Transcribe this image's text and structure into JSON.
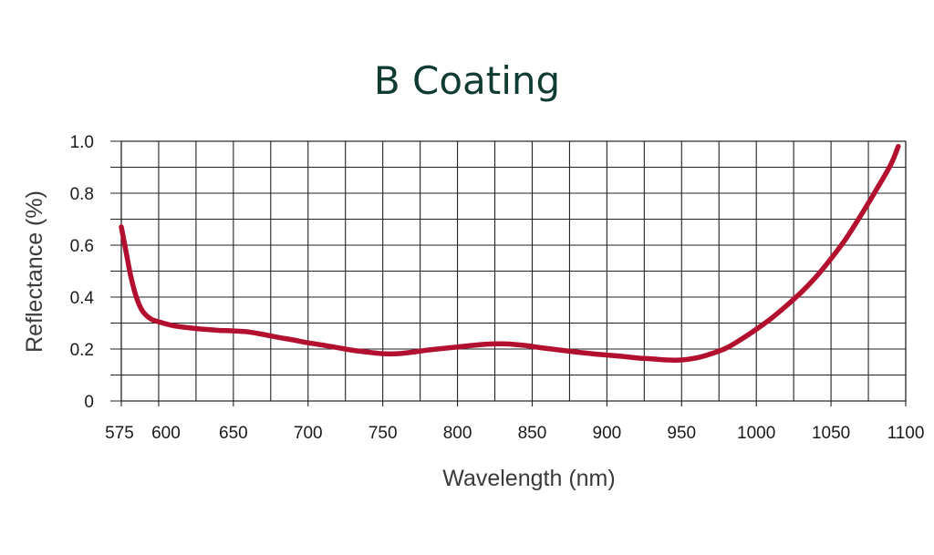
{
  "chart_data": {
    "type": "line",
    "title": "B Coating",
    "xlabel": "Wavelength (nm)",
    "ylabel": "Reflectance (%)",
    "xlim": [
      575,
      1100
    ],
    "ylim": [
      0,
      1.0
    ],
    "x_ticks": [
      575,
      600,
      650,
      700,
      750,
      800,
      850,
      900,
      950,
      1000,
      1050,
      1100
    ],
    "x_tick_labels": [
      "575",
      "600",
      "650",
      "700",
      "750",
      "800",
      "850",
      "900",
      "950",
      "1000",
      "1050",
      "1100"
    ],
    "y_ticks": [
      0,
      0.2,
      0.4,
      0.6,
      0.8,
      1.0
    ],
    "y_tick_labels": [
      "0",
      "0.2",
      "0.4",
      "0.6",
      "0.8",
      "1.0"
    ],
    "y_minor_gridlines": [
      0.1,
      0.3,
      0.5,
      0.7,
      0.9
    ],
    "x_minor_gridlines": [
      625,
      675,
      725,
      775,
      825,
      875,
      925,
      975,
      1025,
      1075
    ],
    "grid": true,
    "line_color": "#b3102f",
    "series": [
      {
        "x": [
          575,
          578,
          581,
          584,
          587,
          590,
          595,
          600,
          610,
          620,
          630,
          640,
          650,
          660,
          670,
          680,
          690,
          700,
          710,
          720,
          730,
          740,
          750,
          760,
          770,
          780,
          790,
          800,
          810,
          820,
          830,
          840,
          850,
          860,
          870,
          880,
          890,
          900,
          910,
          920,
          930,
          940,
          950,
          960,
          970,
          980,
          990,
          1000,
          1010,
          1020,
          1030,
          1040,
          1050,
          1060,
          1070,
          1080,
          1090,
          1095
        ],
        "values": [
          0.67,
          0.58,
          0.49,
          0.42,
          0.37,
          0.34,
          0.315,
          0.305,
          0.29,
          0.282,
          0.276,
          0.272,
          0.27,
          0.266,
          0.256,
          0.245,
          0.235,
          0.224,
          0.215,
          0.205,
          0.195,
          0.188,
          0.182,
          0.182,
          0.188,
          0.196,
          0.202,
          0.208,
          0.214,
          0.219,
          0.22,
          0.217,
          0.21,
          0.202,
          0.195,
          0.188,
          0.182,
          0.177,
          0.172,
          0.166,
          0.162,
          0.158,
          0.158,
          0.166,
          0.182,
          0.204,
          0.238,
          0.276,
          0.318,
          0.366,
          0.418,
          0.478,
          0.548,
          0.625,
          0.715,
          0.81,
          0.91,
          0.98
        ]
      }
    ]
  }
}
